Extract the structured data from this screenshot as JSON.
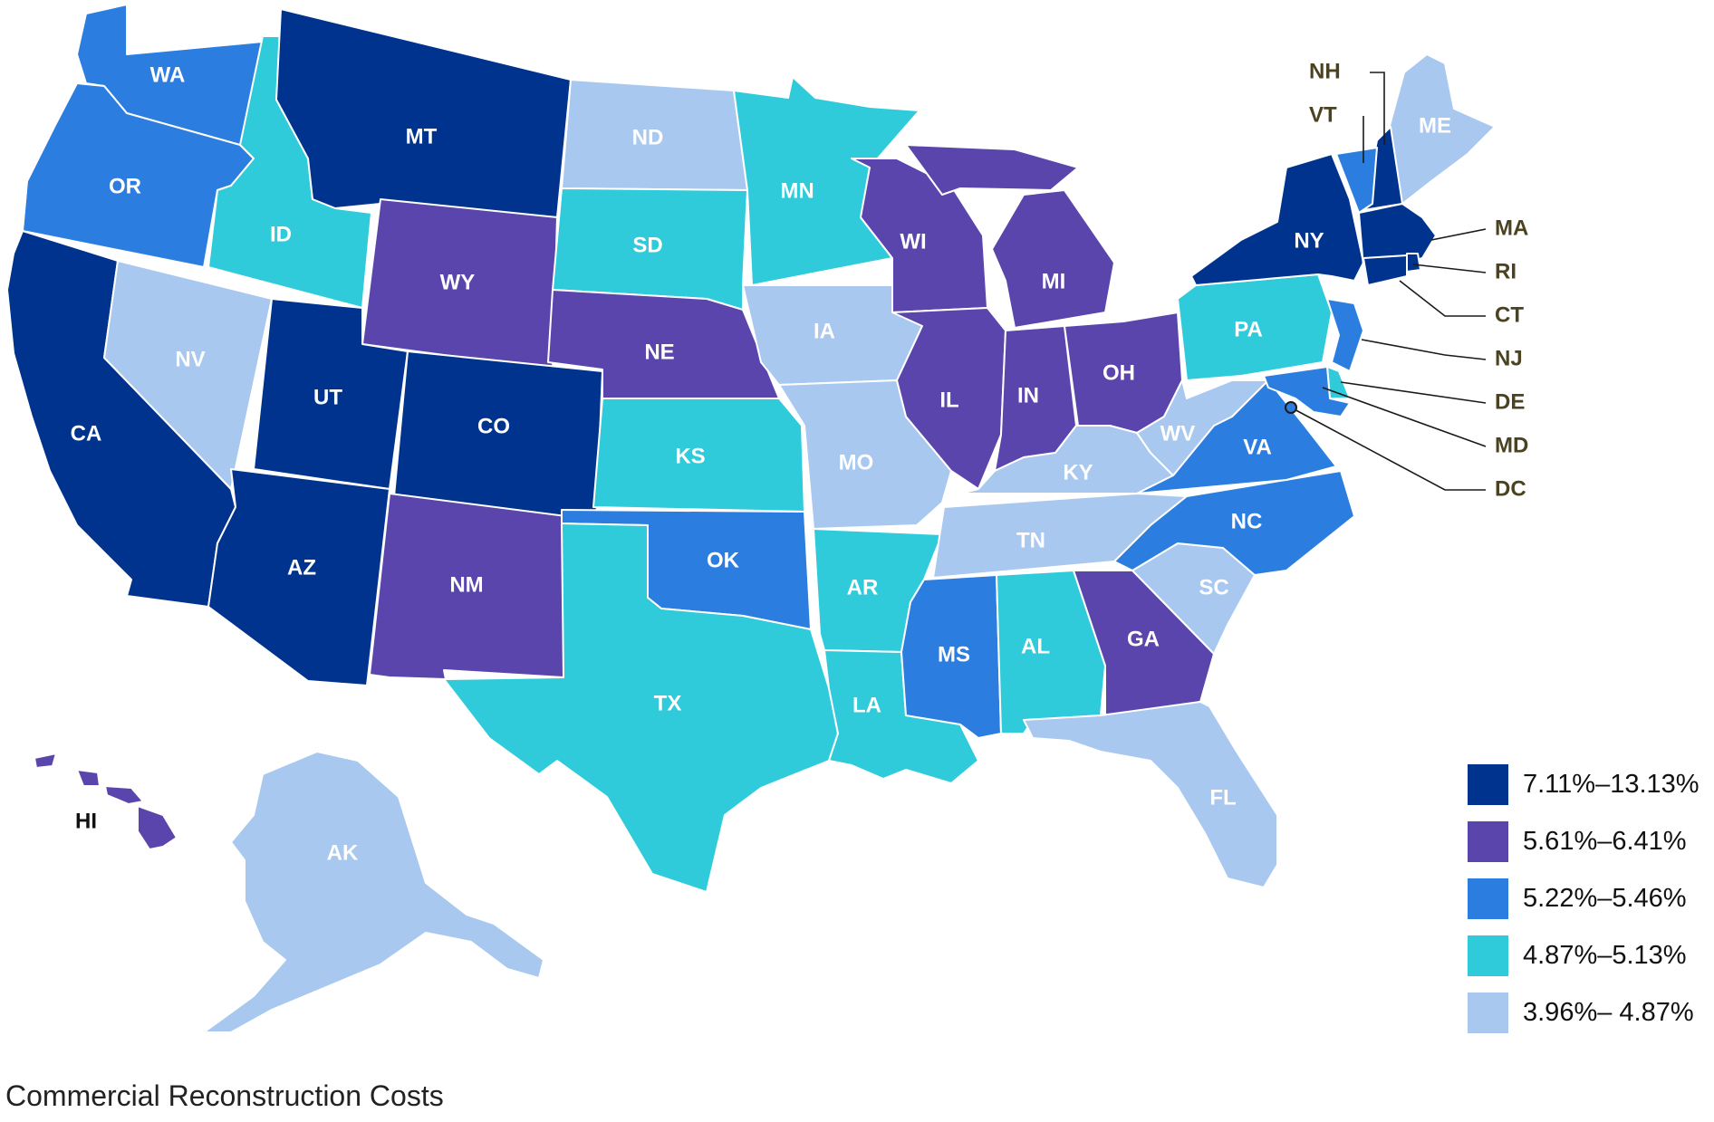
{
  "caption": "Commercial Reconstruction Costs",
  "colors": {
    "tier1": "#00338d",
    "tier2": "#5a45ac",
    "tier3": "#2b7de0",
    "tier4": "#2fcbda",
    "tier5": "#a8c8f0"
  },
  "legend": [
    {
      "tier": "tier1",
      "label": "7.11%–13.13%"
    },
    {
      "tier": "tier2",
      "label": "5.61%–6.41%"
    },
    {
      "tier": "tier3",
      "label": "5.22%–5.46%"
    },
    {
      "tier": "tier4",
      "label": "4.87%–5.13%"
    },
    {
      "tier": "tier5",
      "label": "3.96%– 4.87%"
    }
  ],
  "states": [
    {
      "abbr": "WA",
      "tier": "tier3"
    },
    {
      "abbr": "OR",
      "tier": "tier3"
    },
    {
      "abbr": "CA",
      "tier": "tier1"
    },
    {
      "abbr": "ID",
      "tier": "tier4"
    },
    {
      "abbr": "NV",
      "tier": "tier5"
    },
    {
      "abbr": "MT",
      "tier": "tier1"
    },
    {
      "abbr": "WY",
      "tier": "tier2"
    },
    {
      "abbr": "UT",
      "tier": "tier1"
    },
    {
      "abbr": "AZ",
      "tier": "tier1"
    },
    {
      "abbr": "CO",
      "tier": "tier1"
    },
    {
      "abbr": "NM",
      "tier": "tier2"
    },
    {
      "abbr": "ND",
      "tier": "tier5"
    },
    {
      "abbr": "SD",
      "tier": "tier4"
    },
    {
      "abbr": "NE",
      "tier": "tier2"
    },
    {
      "abbr": "KS",
      "tier": "tier4"
    },
    {
      "abbr": "OK",
      "tier": "tier3"
    },
    {
      "abbr": "TX",
      "tier": "tier4"
    },
    {
      "abbr": "MN",
      "tier": "tier4"
    },
    {
      "abbr": "IA",
      "tier": "tier5"
    },
    {
      "abbr": "MO",
      "tier": "tier5"
    },
    {
      "abbr": "AR",
      "tier": "tier4"
    },
    {
      "abbr": "LA",
      "tier": "tier4"
    },
    {
      "abbr": "WI",
      "tier": "tier2"
    },
    {
      "abbr": "IL",
      "tier": "tier2"
    },
    {
      "abbr": "MI",
      "tier": "tier2"
    },
    {
      "abbr": "IN",
      "tier": "tier2"
    },
    {
      "abbr": "OH",
      "tier": "tier2"
    },
    {
      "abbr": "KY",
      "tier": "tier5"
    },
    {
      "abbr": "TN",
      "tier": "tier5"
    },
    {
      "abbr": "MS",
      "tier": "tier3"
    },
    {
      "abbr": "AL",
      "tier": "tier4"
    },
    {
      "abbr": "GA",
      "tier": "tier2"
    },
    {
      "abbr": "FL",
      "tier": "tier5"
    },
    {
      "abbr": "SC",
      "tier": "tier5"
    },
    {
      "abbr": "NC",
      "tier": "tier3"
    },
    {
      "abbr": "VA",
      "tier": "tier3"
    },
    {
      "abbr": "WV",
      "tier": "tier5"
    },
    {
      "abbr": "PA",
      "tier": "tier4"
    },
    {
      "abbr": "NY",
      "tier": "tier1"
    },
    {
      "abbr": "ME",
      "tier": "tier5"
    },
    {
      "abbr": "AK",
      "tier": "tier5"
    },
    {
      "abbr": "HI",
      "tier": "tier2"
    }
  ],
  "callouts": [
    {
      "abbr": "NH",
      "tier": "tier1"
    },
    {
      "abbr": "VT",
      "tier": "tier3"
    },
    {
      "abbr": "MA",
      "tier": "tier1"
    },
    {
      "abbr": "RI",
      "tier": "tier1"
    },
    {
      "abbr": "CT",
      "tier": "tier1"
    },
    {
      "abbr": "NJ",
      "tier": "tier3"
    },
    {
      "abbr": "DE",
      "tier": "tier4"
    },
    {
      "abbr": "MD",
      "tier": "tier3"
    },
    {
      "abbr": "DC",
      "tier": "tier3"
    }
  ]
}
